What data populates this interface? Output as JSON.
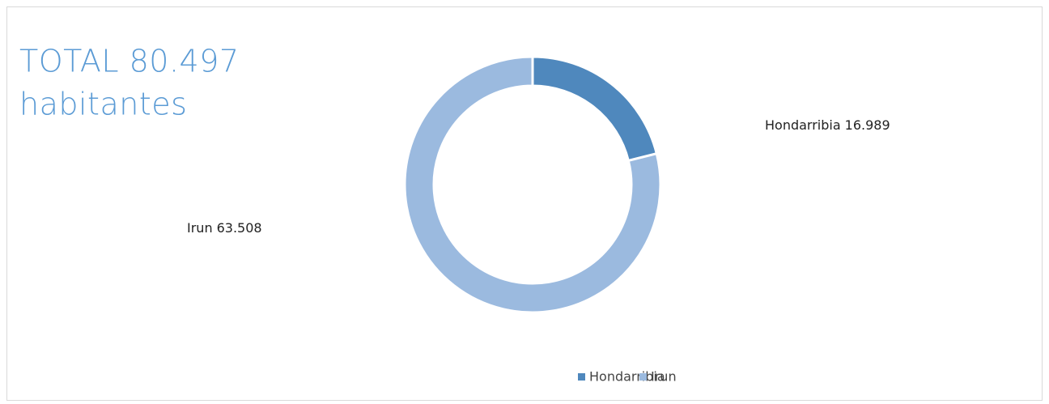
{
  "chart_data": {
    "type": "donut",
    "title": [
      "TOTAL 80.497",
      "habitantes"
    ],
    "categories": [
      "Hondarribia",
      "Irun"
    ],
    "values": [
      16989,
      63508
    ],
    "value_labels": [
      "16.989",
      "63.508"
    ],
    "colors": [
      "#4f88bd",
      "#9bbadf"
    ],
    "legend": "bottom"
  }
}
